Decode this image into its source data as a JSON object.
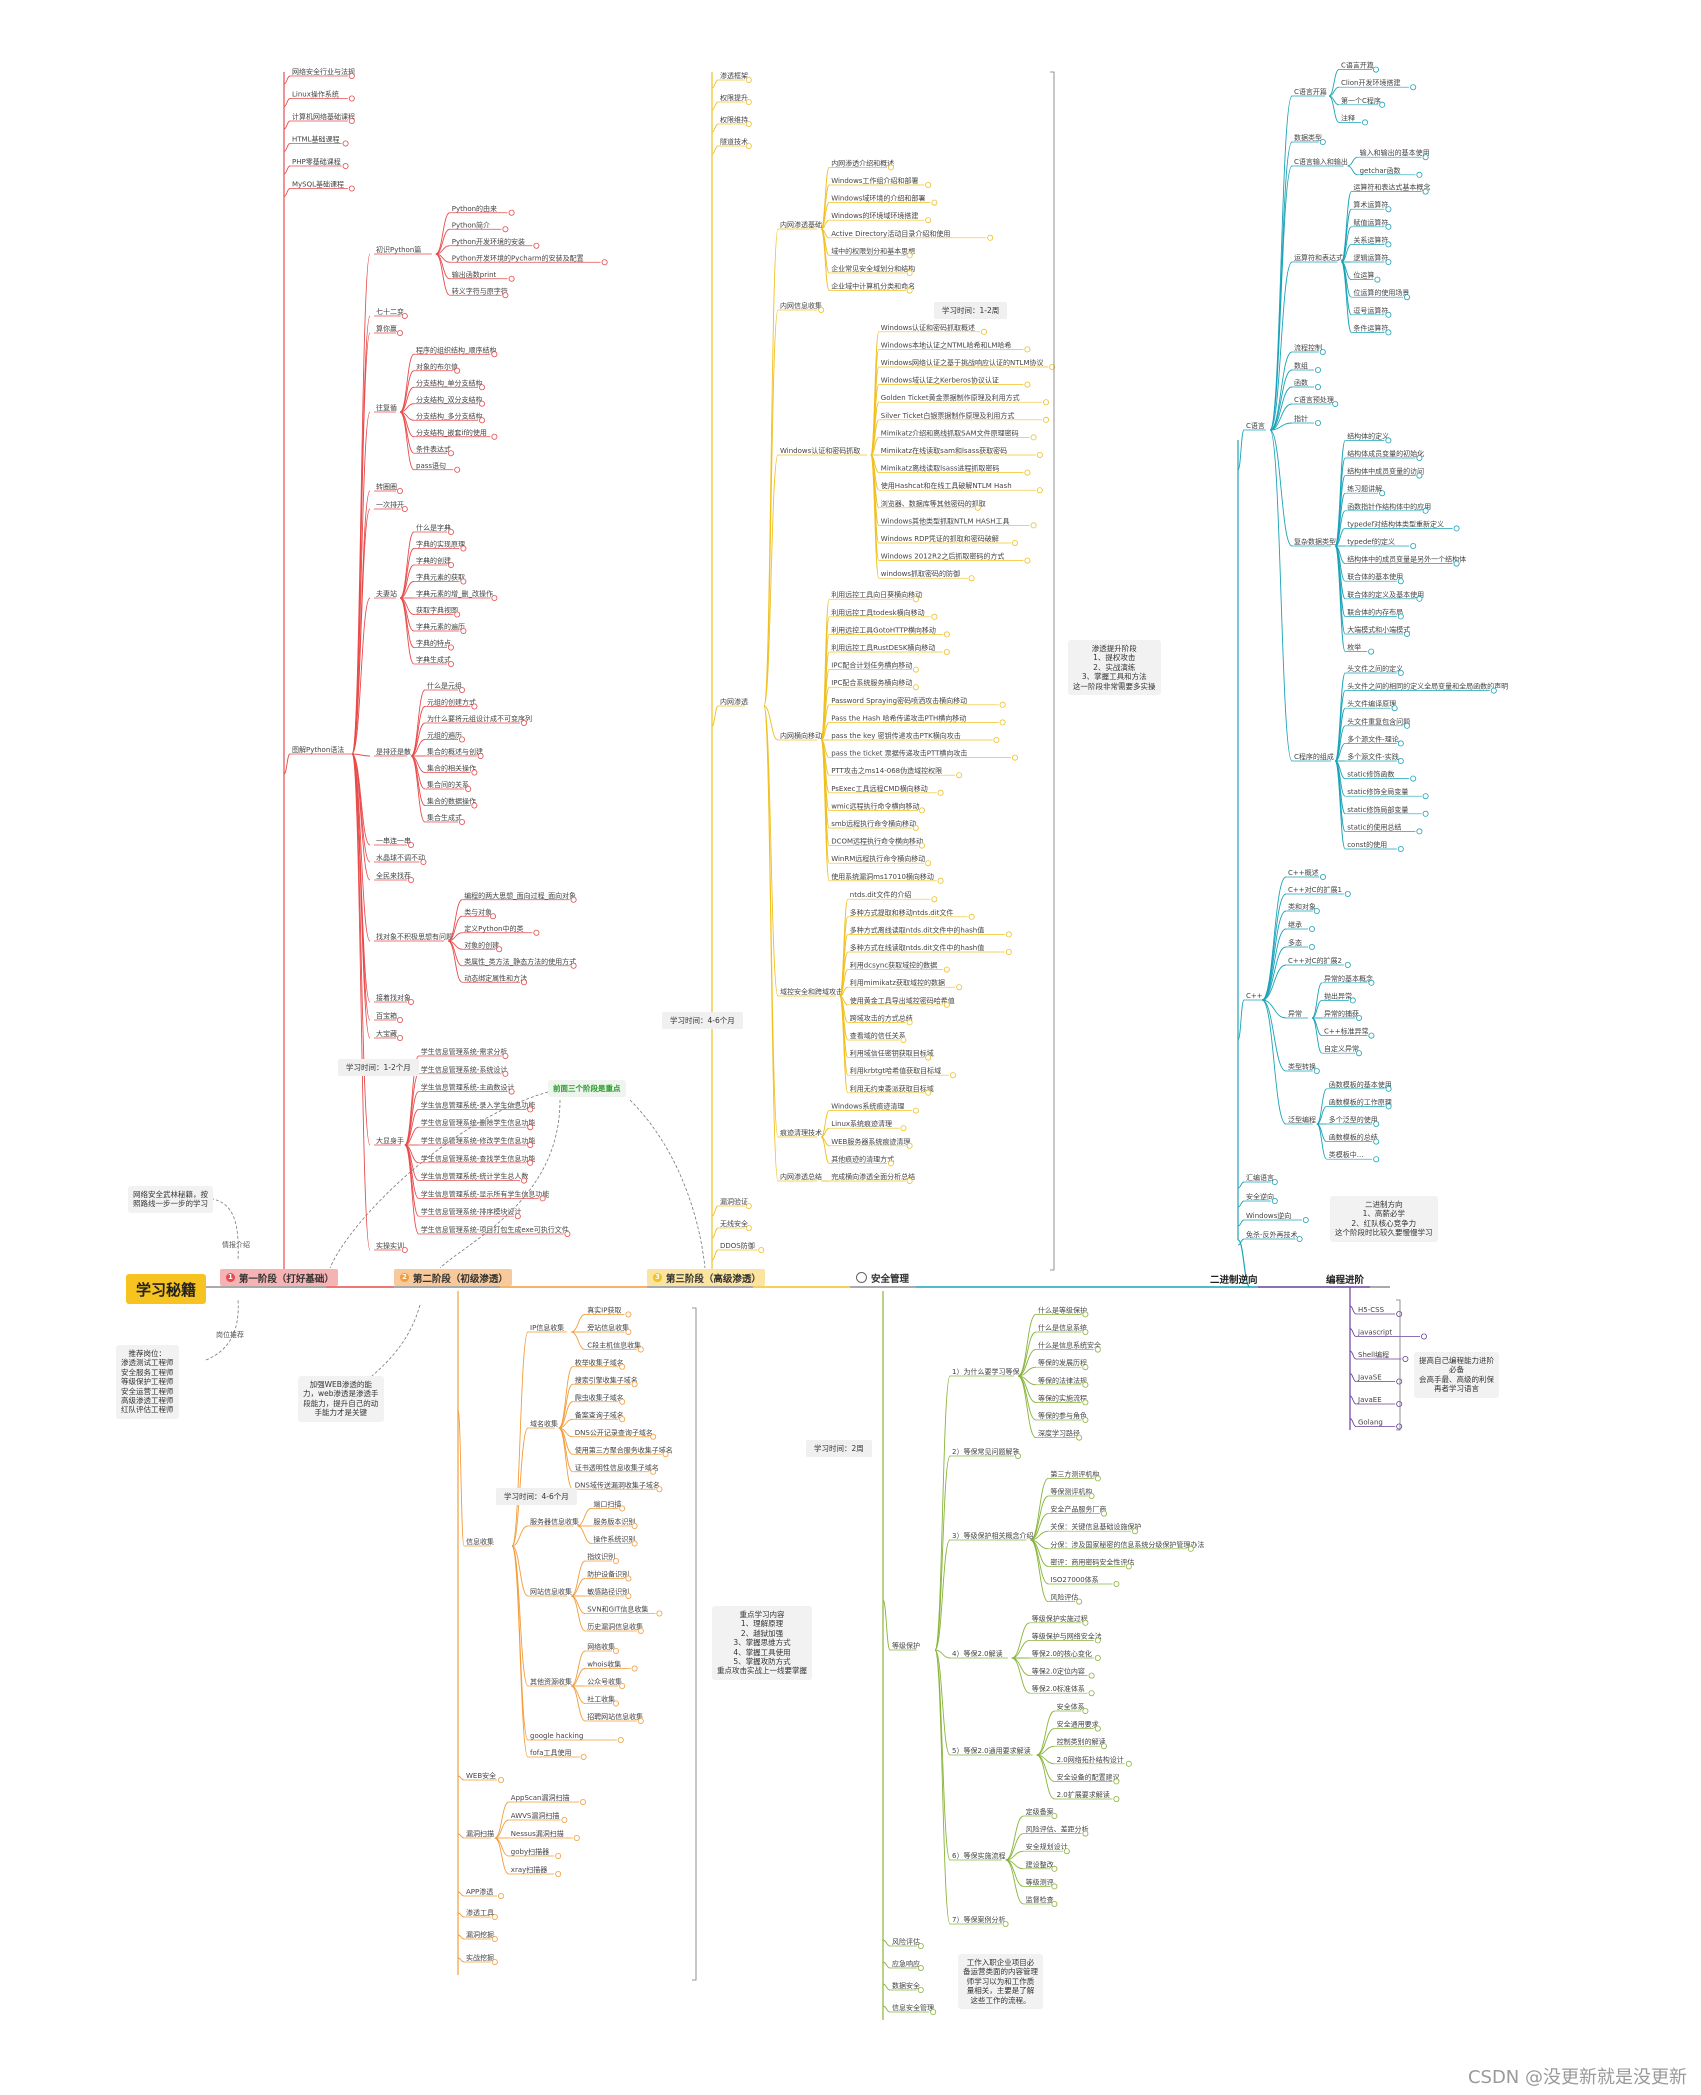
{
  "root": {
    "label": "学习秘籍"
  },
  "stages": [
    {
      "id": "s1",
      "num": "1",
      "label": "第一阶段（打好基础）",
      "color": "#e84b4b",
      "bg": "#f6b3b3"
    },
    {
      "id": "s2",
      "num": "2",
      "label": "第二阶段（初级渗透）",
      "color": "#f39c3a",
      "bg": "#f8c99a"
    },
    {
      "id": "s3",
      "num": "3",
      "label": "第三阶段（高级渗透）",
      "color": "#f0c020",
      "bg": "#fbe4a0"
    },
    {
      "id": "s4",
      "num": "4",
      "label": "安全管理",
      "color": "#88b43a",
      "bg": "#ffffff"
    },
    {
      "id": "s5",
      "label": "二进制逆向",
      "color": "#1aa3b8"
    },
    {
      "id": "s6",
      "label": "编程进阶",
      "color": "#6a3f9a"
    }
  ],
  "left_notes": {
    "note1": [
      "网络安全武林秘籍，按",
      "照路线一步一步的学习"
    ],
    "note1_label": "情报介绍",
    "note2_label": "岗位推荐",
    "note2": [
      "推荐岗位：",
      "渗透测试工程师",
      "安全服务工程师",
      "等级保护工程师",
      "安全运营工程师",
      "高级渗透工程师",
      "红队评估工程师"
    ]
  },
  "stage1": {
    "time": "学习时间：1-2个月",
    "top_items": [
      "网络安全行业与法规",
      "Linux操作系统",
      "计算机网络基础课程",
      "HTML基础课程",
      "PHP零基础课程",
      "MySQL基础课程"
    ],
    "python_label": "图解Python语法",
    "python_groups": [
      {
        "label": "初识Python篇",
        "items": [
          "Python的由来",
          "Python简介",
          "Python开发环境的安装",
          "Python开发环境的Pycharm的安装及配置",
          "输出函数print",
          "转义字符与原字符"
        ]
      },
      {
        "label": "七十二变",
        "items": []
      },
      {
        "label": "算你赢",
        "items": []
      },
      {
        "label": "往复循",
        "items": [
          "程序的组织结构_顺序结构",
          "对象的布尔值",
          "分支结构_单分支结构",
          "分支结构_双分支结构",
          "分支结构_多分支结构",
          "分支结构_嵌套if的使用",
          "条件表达式",
          "pass语句"
        ]
      },
      {
        "label": "转圈圈",
        "items": []
      },
      {
        "label": "一次排开",
        "items": []
      },
      {
        "label": "夫妻站",
        "items": [
          "什么是字典",
          "字典的实现原理",
          "字典的创建",
          "字典元素的获取",
          "字典元素的增_删_改操作",
          "获取字典视图",
          "字典元素的遍历",
          "字典的特点",
          "字典生成式"
        ]
      },
      {
        "label": "是排还是散",
        "items": [
          "什么是元组",
          "元组的创建方式",
          "为什么要将元组设计成不可变序列",
          "元组的遍历",
          "集合的概述与创建",
          "集合的相关操作",
          "集合间的关系",
          "集合的数据操作",
          "集合生成式"
        ]
      },
      {
        "label": "一串连一串",
        "items": []
      },
      {
        "label": "水晶球不调不动",
        "items": []
      },
      {
        "label": "全民来找茬",
        "items": []
      },
      {
        "label": "找对象不积极思想有问题",
        "items": [
          "编程的两大思想_面向过程_面向对象",
          "类与对象",
          "定义Python中的类",
          "对象的创建",
          "类属性_类方法_静态方法的使用方式",
          "动态绑定属性和方法"
        ]
      },
      {
        "label": "接着找对象",
        "items": []
      },
      {
        "label": "百宝箱",
        "items": []
      },
      {
        "label": "大宝藏",
        "items": []
      },
      {
        "label": "大显身手",
        "items": [
          "学生信息管理系统-需求分析",
          "学生信息管理系统-系统设计",
          "学生信息管理系统-主函数设计",
          "学生信息管理系统-录入学生信息功能",
          "学生信息管理系统-删除学生信息功能",
          "学生信息管理系统-修改学生信息功能",
          "学生信息管理系统-查找学生信息功能",
          "学生信息管理系统-统计学生总人数",
          "学生信息管理系统-显示所有学生信息功能",
          "学生信息管理系统-排序模块设计",
          "学生信息管理系统-项目打包生成exe可执行文件"
        ]
      },
      {
        "label": "实操实训",
        "items": []
      }
    ],
    "key_note": "前面三个阶段是重点"
  },
  "stage2": {
    "time": "学习时间：4-6个月",
    "note": [
      "加强WEB渗透的能",
      "力，web渗透是渗透手",
      "段能力，提升自己的动",
      "手能力才是关键"
    ],
    "info_label": "信息收集",
    "info_groups": [
      {
        "label": "IP信息收集",
        "items": [
          "真实IP获取",
          "旁站信息收集",
          "C段主机信息收集"
        ]
      },
      {
        "label": "域名收集",
        "items": [
          "枚举收集子域名",
          "搜索引擎收集子域名",
          "爬虫收集子域名",
          "备案查询子域名",
          "DNS公开记录查询子域名",
          "使用第三方聚合服务收集子域名",
          "证书透明性信息收集子域名",
          "DNS域传送漏洞收集子域名"
        ]
      },
      {
        "label": "服务器信息收集",
        "items": [
          "端口扫描",
          "服务版本识别",
          "操作系统识别"
        ]
      },
      {
        "label": "网站信息收集",
        "items": [
          "指纹识别",
          "防护设备识别",
          "敏感路径识别",
          "SVN和GIT信息收集",
          "历史漏洞信息收集"
        ]
      },
      {
        "label": "其他资源收集",
        "items": [
          "网络收集",
          "whois收集",
          "公众号收集",
          "社工收集",
          "招聘网站信息收集"
        ]
      },
      {
        "label": "google hacking",
        "items": []
      },
      {
        "label": "fofa工具使用",
        "items": []
      }
    ],
    "other_groups": [
      {
        "label": "WEB安全",
        "items": []
      },
      {
        "label": "漏洞扫描",
        "items": [
          "AppScan漏洞扫描",
          "AWVS漏洞扫描",
          "Nessus漏洞扫描",
          "goby扫描器",
          "xray扫描器"
        ]
      },
      {
        "label": "APP渗透",
        "items": []
      },
      {
        "label": "渗透工具",
        "items": []
      },
      {
        "label": "漏洞挖掘",
        "items": []
      },
      {
        "label": "实战挖掘",
        "items": []
      }
    ],
    "key_points": [
      "重点学习内容",
      "1、理解原理",
      "2、越狱加强",
      "3、掌握思维方式",
      "4、掌握工具使用",
      "5、掌握攻防方式",
      "重点攻击实战上一线要掌握"
    ]
  },
  "stage3": {
    "time": "学习时间：4-6个月",
    "top_items": [
      "渗透框架",
      "权限提升",
      "权限维持",
      "隧道技术"
    ],
    "intranet_label": "内网渗透",
    "inner_groups": [
      {
        "label": "内网渗透基础",
        "items": [
          "内网渗透介绍和概述",
          "Windows工作组介绍和部署",
          "Windows域环境的介绍和部署",
          "Windows的环境域环境搭建",
          "Active Directory活动目录介绍和使用",
          "域中的权限划分和基本思想",
          "企业常见安全域划分和结构",
          "企业域中计算机分类和命名"
        ]
      },
      {
        "label": "内网信息收集",
        "items": []
      },
      {
        "label": "Windows认证和密码抓取",
        "items": [
          "Windows认证和密码抓取概述",
          "Windows本地认证之NTML哈希和LM哈希",
          "Windows网络认证之基于挑战响应认证的NTLM协议",
          "Windows域认证之Kerberos协议认证",
          "Golden Ticket黄金票据制作原理及利用方式",
          "Silver Ticket白银票据制作原理及利用方式",
          "Mimikatz介绍和离线抓取SAM文件原理密码",
          "Mimikatz在线读取sam和lsass获取密码",
          "Mimikatz离线读取lsass进程抓取密码",
          "使用Hashcat和在线工具破解NTLM Hash",
          "浏览器、数据库等其他密码的抓取",
          "Windows其他类型抓取NTLM HASH工具",
          "Windows RDP凭证的抓取和密码破解",
          "Windows 2012R2之后抓取密码的方式",
          "windows抓取密码的防御"
        ]
      },
      {
        "label": "内网横向移动",
        "items": [
          "利用远控工具向日葵横向移动",
          "利用远控工具todesk横向移动",
          "利用远控工具GotoHTTP横向移动",
          "利用远控工具RustDESK横向移动",
          "IPC配合计划任务横向移动",
          "IPC配合系统服务横向移动",
          "Password Spraying密码喷洒攻击横向移动",
          "Pass the Hash 哈希传递攻击PTH横向移动",
          "pass the key 密钥传递攻击PTK横向攻击",
          "pass the ticket 票据传递攻击PTT横向攻击",
          "PTT攻击之ms14-068伪造域控权限",
          "PsExec工具远程CMD横向移动",
          "wmic远程执行命令横向移动",
          "smb远程执行命令横向移动",
          "DCOM远程执行命令横向移动",
          "WinRM远程执行命令横向移动",
          "使用系统漏洞ms17010横向移动"
        ]
      },
      {
        "label": "域控安全和跨域攻击",
        "items": [
          "ntds.dit文件的介绍",
          "多种方式提取和移动ntds.dit文件",
          "多种方式离线读取ntds.dit文件中的hash值",
          "多种方式在线读取ntds.dit文件中的hash值",
          "利用dcsync获取域控的数据",
          "利用mimikatz获取域控的数据",
          "使用黄金工具导出域控密码哈希值",
          "跨域攻击的方式总结",
          "查看域的信任关系",
          "利用域信任密钥获取目标域",
          "利用krbtgt哈希值获取目标域",
          "利用无约束委派获取目标域"
        ]
      },
      {
        "label": "痕迹清理技术",
        "items": [
          "Windows系统痕迹清理",
          "Linux系统痕迹清理",
          "WEB服务器系统痕迹清理",
          "其他痕迹的清理方式"
        ]
      },
      {
        "label": "内网渗透总结",
        "items": [
          "完成横向渗透全面分析总结"
        ]
      }
    ],
    "inner_time": "学习时间：1-2周",
    "other_items": [
      "漏洞验证",
      "无线安全",
      "DDOS防御"
    ],
    "note": [
      "渗透提升阶段",
      "1、提权攻击",
      "2、实战演练",
      "3、掌握工具和方法",
      "这一阶段非常需要多实操"
    ]
  },
  "stage4": {
    "time": "学习时间：2周",
    "level_label": "等级保护",
    "groups": [
      {
        "label": "1）为什么要学习等保",
        "items": [
          "什么是等级保护",
          "什么是信息系统",
          "什么是信息系统安全",
          "等保的发展历程",
          "等保的法律法规",
          "等保的实施流程",
          "等保的参与角色",
          "深度学习路径"
        ]
      },
      {
        "label": "2）等保常见问题解答",
        "items": []
      },
      {
        "label": "3）等级保护相关概念介绍",
        "items": [
          "第三方测评机构",
          "等保测评机构",
          "安全产品服务厂商",
          "关保：关键信息基础设施保护",
          "分保：涉及国家秘密的信息系统分级保护管理办法",
          "密评：商用密码安全性评估",
          "ISO27000体系",
          "风险评估"
        ]
      },
      {
        "label": "4）等保2.0解读",
        "items": [
          "等级保护实施过程",
          "等级保护与网络安全法",
          "等保2.0的核心变化",
          "等保2.0定位内容",
          "等保2.0标准体系"
        ]
      },
      {
        "label": "5）等保2.0通用要求解读",
        "items": [
          "安全体系",
          "安全通用要求",
          "控制类别的解读",
          "2.0网络拓扑结构设计",
          "安全设备的配置建议",
          "2.0扩展要求解读"
        ]
      },
      {
        "label": "6）等保实施流程",
        "items": [
          "定级备案",
          "风险评估、差距分析",
          "安全规划设计",
          "建设整改",
          "等级测评",
          "监督检查"
        ]
      },
      {
        "label": "7）等保案例分析",
        "items": []
      }
    ],
    "bottom_items": [
      "风险评估",
      "应急响应",
      "数据安全",
      "信息安全管理"
    ],
    "note": [
      "工作入职企业项目必",
      "备运营类面的内容管理",
      "师学习以为和工作质",
      "量相关，主要是了解",
      "这些工作的流程。"
    ]
  },
  "reverse": {
    "c_label": "C语言",
    "c_groups": [
      {
        "label": "C语言开篇",
        "items": [
          "C语言开篇",
          "Clion开发环境搭建",
          "第一个C程序",
          "注释"
        ]
      },
      {
        "label": "数据类型",
        "items": []
      },
      {
        "label": "C语言输入和输出",
        "items": [
          "输入和输出的基本使用",
          "getchar函数"
        ]
      },
      {
        "label": "运算符和表达式",
        "items": [
          "运算符和表达式基本概念",
          "算术运算符",
          "赋值运算符",
          "关系运算符",
          "逻辑运算符",
          "位运算",
          "位运算的使用场景",
          "逗号运算符",
          "条件运算符"
        ]
      },
      {
        "label": "流程控制",
        "items": []
      },
      {
        "label": "数组",
        "items": []
      },
      {
        "label": "函数",
        "items": []
      },
      {
        "label": "C语言预处理",
        "items": []
      },
      {
        "label": "指针",
        "items": []
      },
      {
        "label": "复杂数据类型",
        "items": [
          "结构体的定义",
          "结构体成员变量的初始化",
          "结构体中成员变量的访问",
          "练习题讲解",
          "函数指针作结构体中的应用",
          "typedef对结构体类型重新定义",
          "typedef的定义",
          "结构体中的成员变量是另外一个结构体",
          "联合体的基本使用",
          "联合体的定义及基本使用",
          "联合体的内存布局",
          "大端模式和小端模式",
          "枚举"
        ]
      },
      {
        "label": "C程序的组成",
        "items": [
          "头文件之间的定义",
          "头文件之间的相同的定义全局变量和全局函数的声明",
          "头文件编译原理",
          "头文件重复包含问题",
          "多个源文件-理论",
          "多个源文件-实践",
          "static修饰函数",
          "static修饰全局变量",
          "static修饰局部变量",
          "static的使用总结",
          "const的使用"
        ]
      }
    ],
    "cpp_label": "C++",
    "cpp_groups": [
      {
        "label": "C++概述",
        "items": []
      },
      {
        "label": "C++对C的扩展1",
        "items": []
      },
      {
        "label": "类和对象",
        "items": []
      },
      {
        "label": "继承",
        "items": []
      },
      {
        "label": "多态",
        "items": []
      },
      {
        "label": "C++对C的扩展2",
        "items": []
      },
      {
        "label": "异常",
        "items": [
          "异常的基本概念",
          "抛出异常",
          "异常的捕获",
          "C++标准异常",
          "自定义异常"
        ]
      },
      {
        "label": "类型转换",
        "items": []
      },
      {
        "label": "泛型编程",
        "items": [
          "函数模板的基本使用",
          "函数模板的工作原理",
          "多个泛型的使用",
          "函数模板的总结",
          "类模板中..."
        ]
      }
    ],
    "other": [
      "汇编语言",
      "安全逆向",
      "Windows逆向",
      "免杀-反外再技术"
    ],
    "note": [
      "二进制方向",
      "1、高薪必学",
      "2、红队核心竞争力",
      "这个阶段时比较久要慢慢学习"
    ]
  },
  "programming": {
    "items": [
      "H5-CSS",
      "javascript",
      "Shell编程",
      "JavaSE",
      "JavaEE",
      "Golang"
    ],
    "note": [
      "提高自己编程能力进阶",
      "必备",
      "会高手最、高级的利保",
      "再者学习语言"
    ]
  },
  "watermark": "CSDN @没更新就是没更新"
}
